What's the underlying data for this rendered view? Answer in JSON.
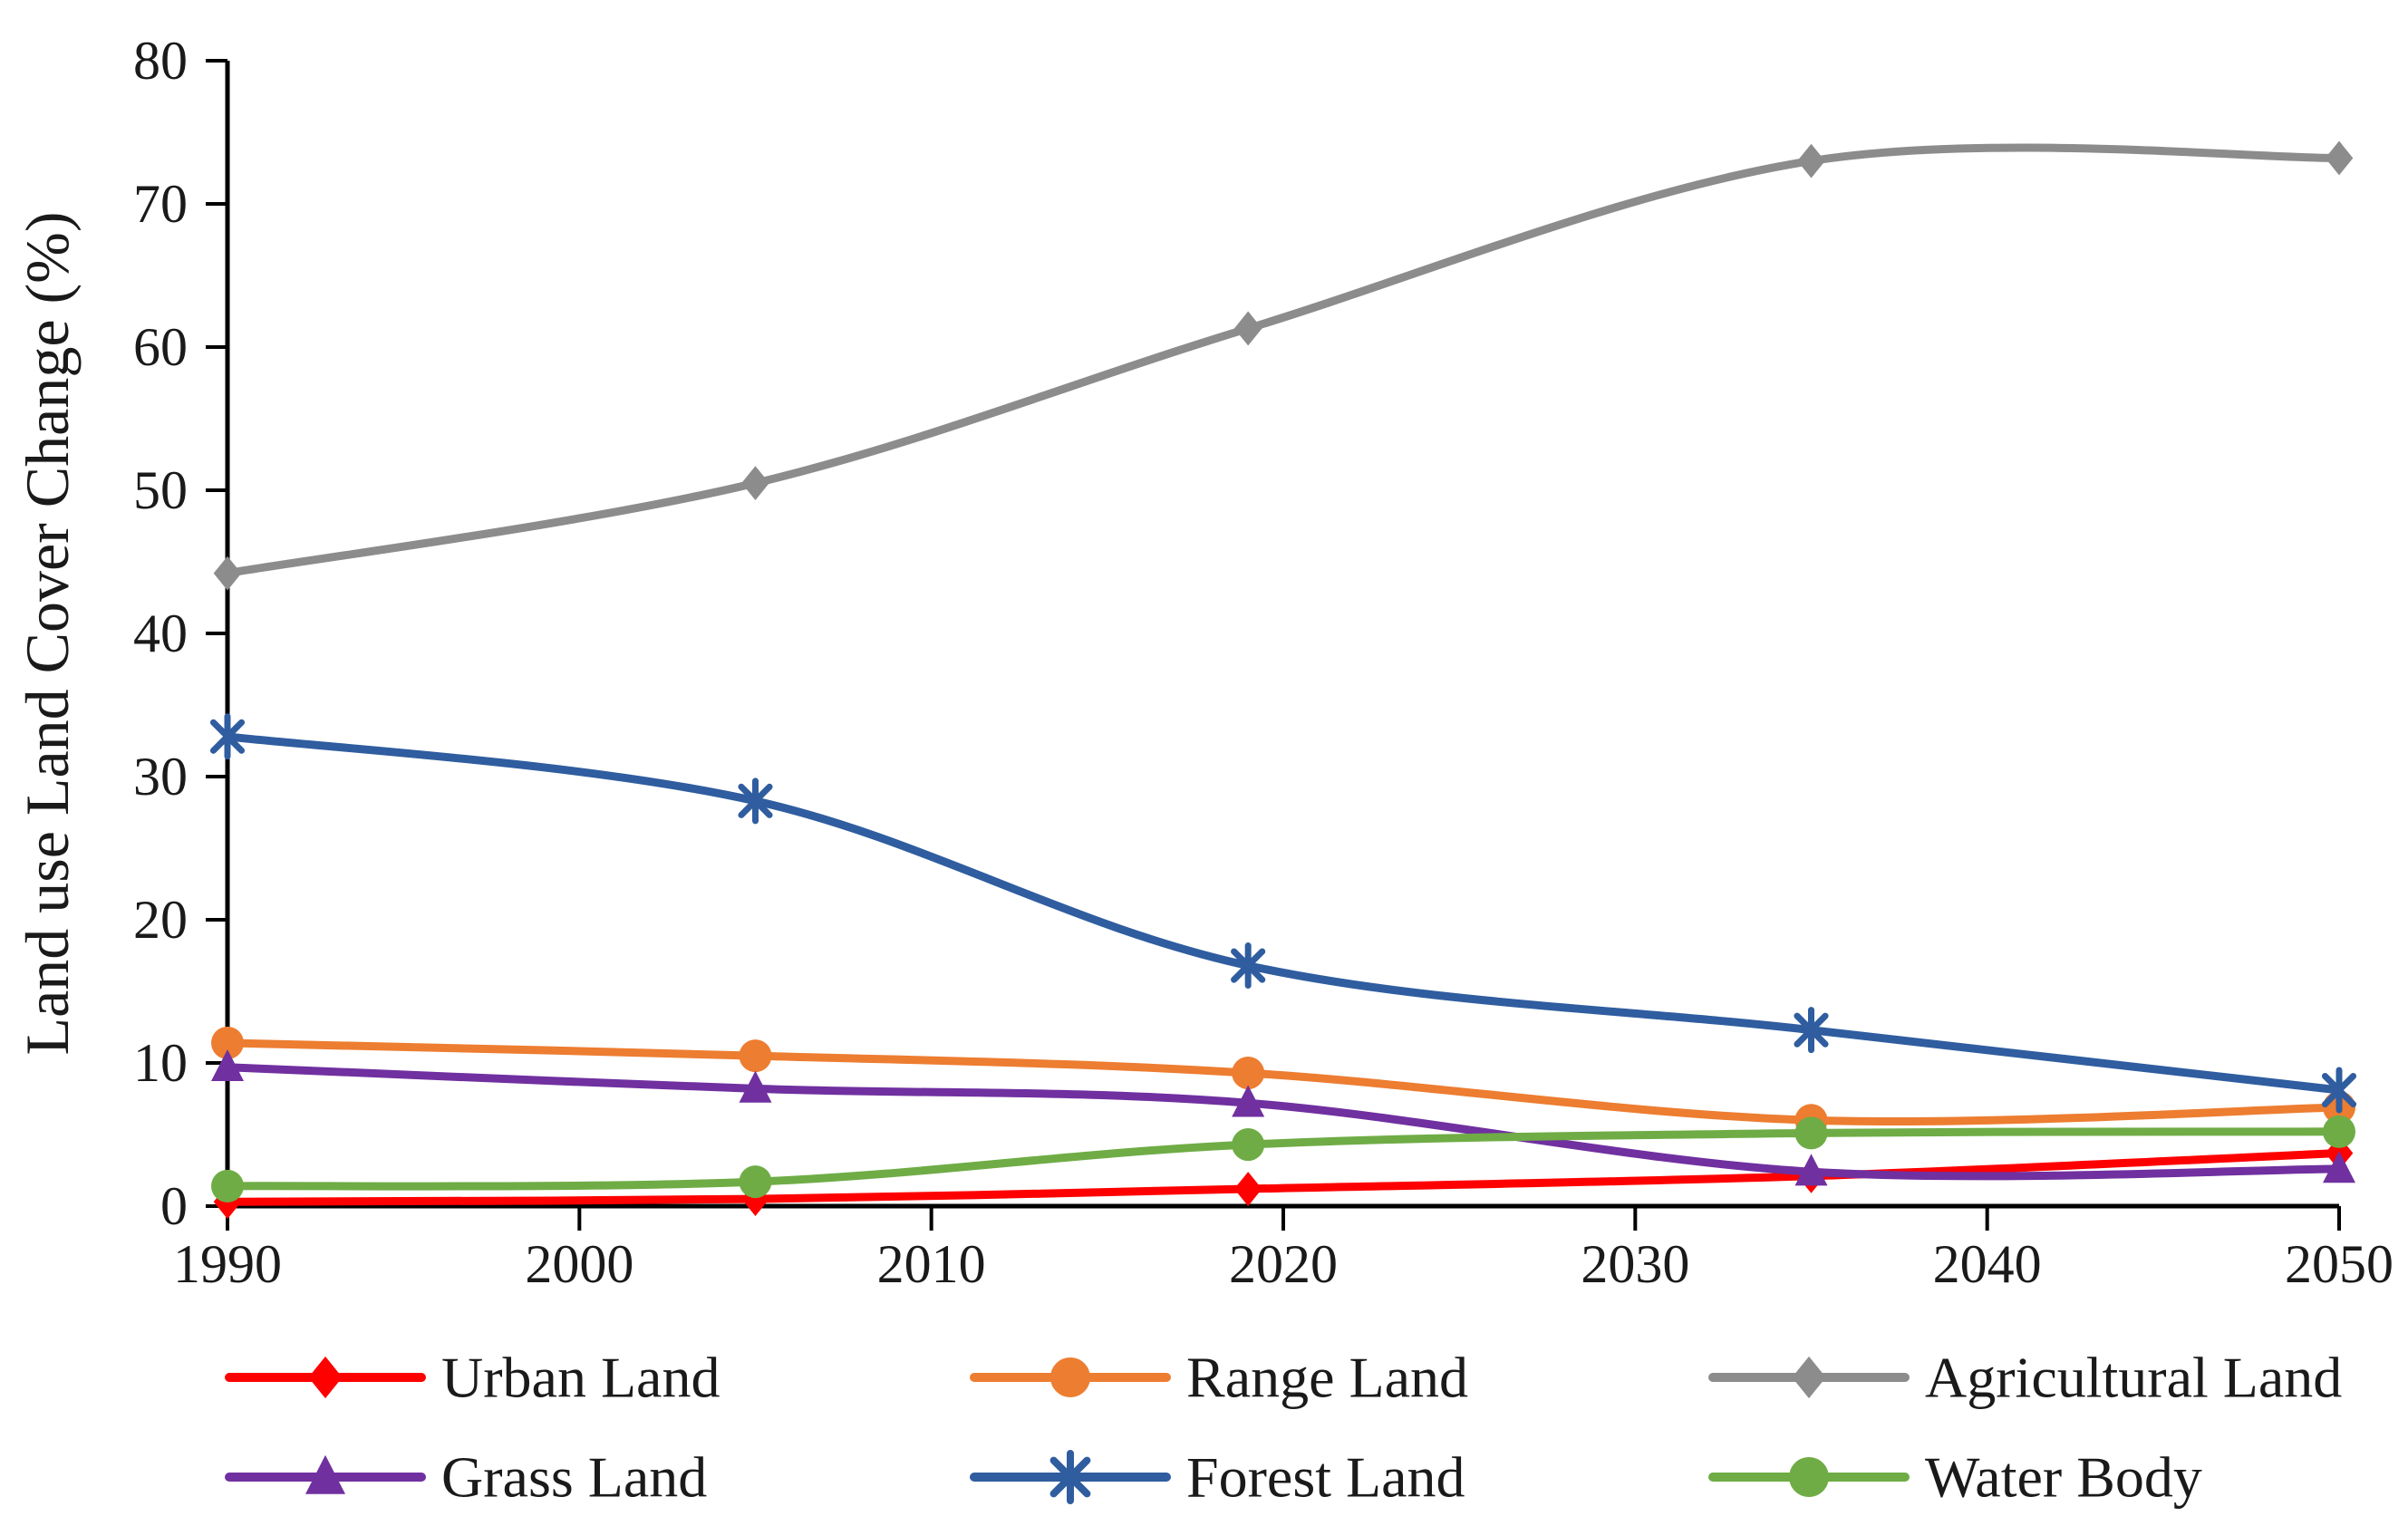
{
  "figure": {
    "background": "#ffffff",
    "axis_color": "#000000",
    "text_color": "#1a1a1a"
  },
  "chart_data": {
    "type": "line",
    "title": "",
    "xlabel": "",
    "ylabel": "Land use Land Cover Change (%)",
    "ylim": [
      0,
      80
    ],
    "xlim": [
      1990,
      2050
    ],
    "y_ticks": [
      "0",
      "10",
      "20",
      "30",
      "40",
      "50",
      "60",
      "70",
      "80"
    ],
    "y_tick_values": [
      0,
      10,
      20,
      30,
      40,
      50,
      60,
      70,
      80
    ],
    "x_ticks": [
      "1990",
      "2000",
      "2010",
      "2020",
      "2030",
      "2040",
      "2050"
    ],
    "x_tick_values": [
      1990,
      2000,
      2010,
      2020,
      2030,
      2040,
      2050
    ],
    "grid": false,
    "line_style": "smooth",
    "legend_position": "bottom",
    "x": [
      1990,
      2005,
      2019,
      2035,
      2050
    ],
    "series": [
      {
        "name": "Urban Land",
        "color": "#fe0000",
        "marker": "diamond",
        "values": [
          0.3,
          0.5,
          1.2,
          2.1,
          3.7
        ]
      },
      {
        "name": "Range Land",
        "color": "#ed7d31",
        "marker": "circle",
        "values": [
          11.4,
          10.5,
          9.3,
          6.0,
          6.9
        ]
      },
      {
        "name": "Agricultural Land",
        "color": "#8c8c8c",
        "marker": "diamond",
        "values": [
          44.2,
          50.5,
          61.3,
          73.0,
          73.2
        ]
      },
      {
        "name": "Grass Land",
        "color": "#7030a0",
        "marker": "triangle",
        "values": [
          9.7,
          8.2,
          7.2,
          2.4,
          2.6
        ]
      },
      {
        "name": "Forest Land",
        "color": "#2f5d9f",
        "marker": "asterisk",
        "values": [
          32.8,
          28.3,
          16.8,
          12.3,
          8.1
        ]
      },
      {
        "name": "Water Body",
        "color": "#6fac46",
        "marker": "circle",
        "values": [
          1.4,
          1.7,
          4.3,
          5.1,
          5.2
        ]
      }
    ],
    "legend_rows": [
      [
        "Urban Land",
        "Range Land",
        "Agricultural Land"
      ],
      [
        "Grass Land",
        "Forest Land",
        "Water Body"
      ]
    ]
  }
}
